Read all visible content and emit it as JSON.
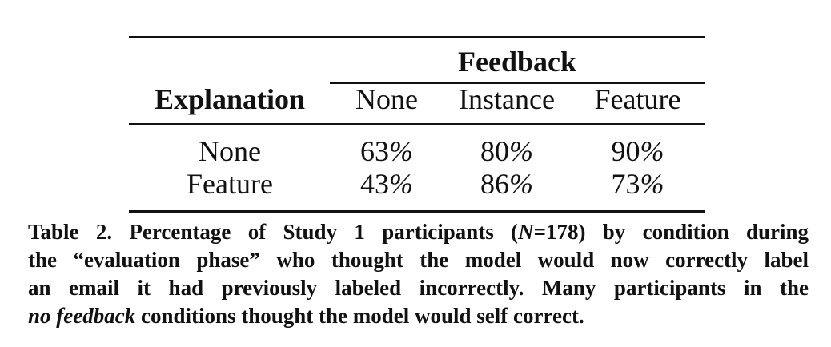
{
  "table": {
    "group_header": "Feedback",
    "row_header_title": "Explanation",
    "columns": [
      "None",
      "Instance",
      "Feature"
    ],
    "rows": [
      {
        "label": "None",
        "values": [
          "63",
          "80",
          "90"
        ]
      },
      {
        "label": "Feature",
        "values": [
          "43",
          "86",
          "73"
        ]
      }
    ],
    "unit": "%"
  },
  "caption": {
    "line1_a": "Table 2. Percentage of Study 1 participants (",
    "line1_n": "N",
    "line1_b": "=178) by condition during",
    "line2": "the “evaluation phase” who thought the model would now correctly label",
    "line3": "an email it had previously labeled incorrectly. Many participants in the",
    "line4_italic": "no feedback",
    "line4_rest": " conditions thought the model would self correct."
  }
}
